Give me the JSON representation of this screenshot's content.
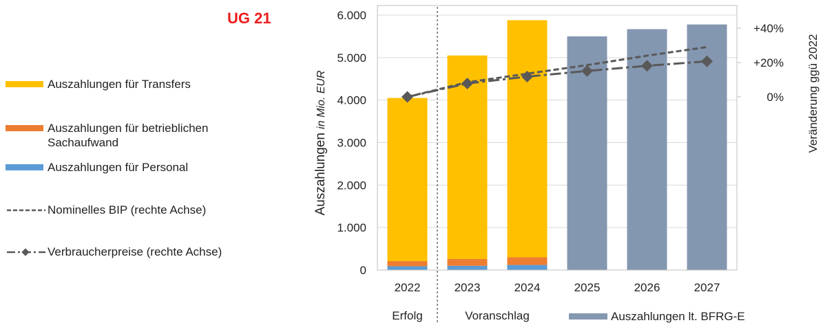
{
  "title": "UG 21",
  "legend": {
    "transfers": "Auszahlungen für Transfers",
    "sach": "Auszahlungen für betrieblichen Sachaufwand",
    "sach_line1": "Auszahlungen für betrieblichen",
    "sach_line2": "Sachaufwand",
    "personal": "Auszahlungen für Personal",
    "bip": "Nominelles BIP (rechte Achse)",
    "vpi": "Verbraucherpreise (rechte Achse)"
  },
  "colors": {
    "transfers": "#ffc000",
    "sach": "#ed7d31",
    "personal": "#5b9bd5",
    "bfrg": "#8497b0",
    "line": "#595959",
    "title": "#ee1c1c"
  },
  "chart_data": {
    "type": "bar",
    "categories": [
      "2022",
      "2023",
      "2024",
      "2025",
      "2026",
      "2027"
    ],
    "category_groups": [
      {
        "label": "Erfolg",
        "categories": [
          "2022"
        ]
      },
      {
        "label": "Voranschlag",
        "categories": [
          "2023",
          "2024"
        ]
      }
    ],
    "series": [
      {
        "name": "Auszahlungen für Personal",
        "values": [
          90,
          100,
          120,
          null,
          null,
          null
        ]
      },
      {
        "name": "Auszahlungen für betrieblichen Sachaufwand",
        "values": [
          120,
          160,
          180,
          null,
          null,
          null
        ]
      },
      {
        "name": "Auszahlungen für Transfers",
        "values": [
          3840,
          4790,
          5580,
          null,
          null,
          null
        ]
      },
      {
        "name": "Auszahlungen lt. BFRG-E",
        "values": [
          null,
          null,
          null,
          5500,
          5670,
          5780
        ]
      }
    ],
    "line_series": [
      {
        "name": "Nominelles BIP (rechte Achse)",
        "style": "dashed",
        "axis": "right",
        "values": [
          0,
          8.5,
          13.5,
          18.5,
          24,
          29
        ]
      },
      {
        "name": "Verbraucherpreise (rechte Achse)",
        "style": "dash-dot",
        "axis": "right",
        "values": [
          0,
          7.8,
          11.8,
          15.1,
          18.1,
          20.7
        ]
      }
    ],
    "ylabel": "Auszahlungen",
    "ylabel_unit": "in Mio. EUR",
    "y2label": "Veränderung ggü 2022",
    "ylim": [
      0,
      6000
    ],
    "yticks": [
      "0",
      "1.000",
      "2.000",
      "3.000",
      "4.000",
      "5.000",
      "6.000"
    ],
    "y2lim": [
      0,
      40
    ],
    "y2ticks": [
      "0%",
      "+20%",
      "+40%"
    ],
    "grid": true,
    "legend_position": "left"
  }
}
